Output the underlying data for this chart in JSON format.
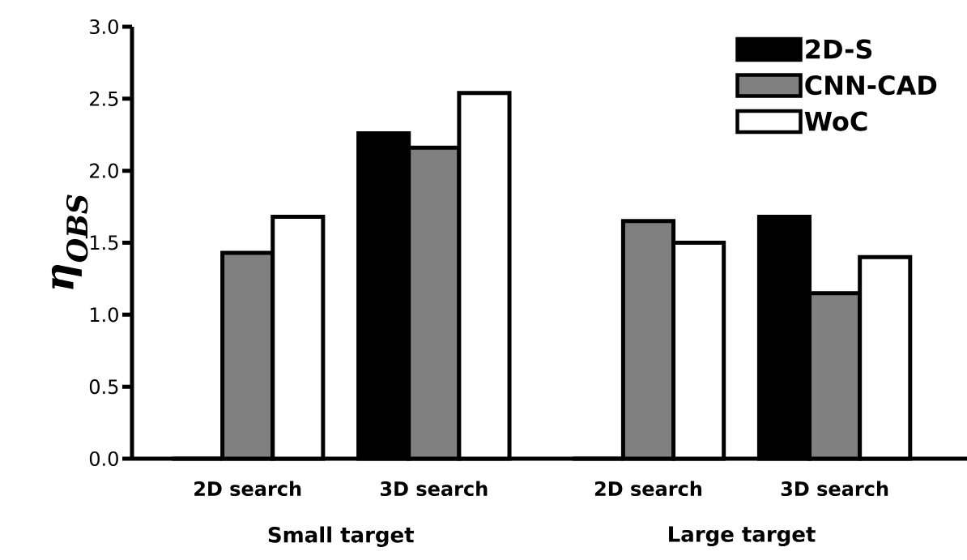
{
  "chart_data": {
    "type": "bar",
    "ylabel": "η$_{OBS}$",
    "categories": [
      "2D search",
      "3D search",
      "2D search",
      "3D search"
    ],
    "series": [
      {
        "name": "2D-S",
        "color": "#000000",
        "values": [
          0,
          2.26,
          0,
          1.68
        ]
      },
      {
        "name": "CNN-CAD",
        "color": "#808080",
        "values": [
          1.43,
          2.16,
          1.65,
          1.15
        ]
      },
      {
        "name": "WoC",
        "color": "#ffffff",
        "values": [
          1.68,
          2.54,
          1.5,
          1.4
        ]
      }
    ],
    "ylim": [
      0,
      3.0
    ],
    "yticks": [
      {
        "value": 0,
        "label": "0.0"
      },
      0.5,
      {
        "value": 1,
        "label": "1.0"
      },
      1.5,
      {
        "value": 2,
        "label": "2.0"
      },
      2.5,
      {
        "value": 3,
        "label": "3.0"
      }
    ],
    "annotations": [
      "Small target",
      "Large target"
    ],
    "legend": "top right",
    "grid": false
  }
}
